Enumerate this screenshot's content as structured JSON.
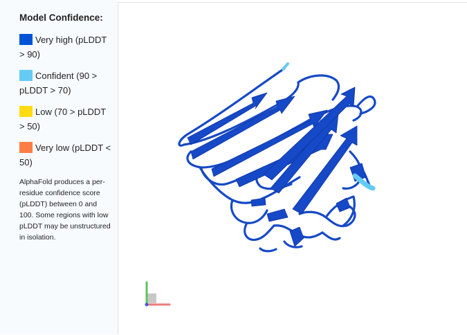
{
  "legend": {
    "title": "Model Confidence:",
    "items": [
      {
        "label": "Very high (pLDDT > 90)",
        "color": "#0053d6"
      },
      {
        "label": "Confident (90 > pLDDT > 70)",
        "color": "#65cbf3"
      },
      {
        "label": "Low (70 > pLDDT > 50)",
        "color": "#ffdb13"
      },
      {
        "label": "Very low (pLDDT < 50)",
        "color": "#ff7d45"
      }
    ],
    "note": "AlphaFold produces a per-residue confidence score (pLDDT) between 0 and 100. Some regions with low pLDDT may be unstructured in isolation."
  },
  "viewer": {
    "structure_color": "#1649c7",
    "confident_color": "#65cbf3",
    "axes_icon": "xyz-axes-icon"
  }
}
